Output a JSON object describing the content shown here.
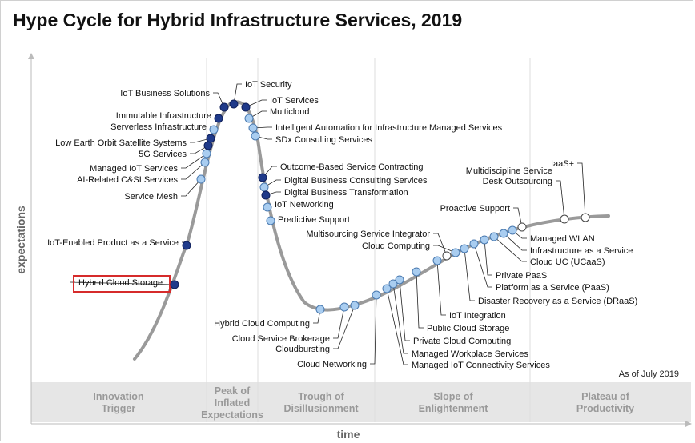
{
  "title": "Hype Cycle for Hybrid Infrastructure Services, 2019",
  "axes": {
    "y_label": "expectations",
    "x_label": "time"
  },
  "as_of": "As of July 2019",
  "phases": [
    {
      "lines": [
        "Innovation",
        "Trigger"
      ]
    },
    {
      "lines": [
        "Peak of",
        "Inflated",
        "Expectations"
      ]
    },
    {
      "lines": [
        "Trough of",
        "Disillusionment"
      ]
    },
    {
      "lines": [
        "Slope of",
        "Enlightenment"
      ]
    },
    {
      "lines": [
        "Plateau of",
        "Productivity"
      ]
    }
  ],
  "colors": {
    "dark_marker": "#1f3a8a",
    "light_marker": "#a9cdf0",
    "white_marker": "#ffffff",
    "curve": "#9a9a9a",
    "highlight_box": "#d62b2b",
    "phase_band": "#e6e6e6",
    "phase_text": "#999999"
  },
  "technologies": [
    {
      "name": "Hybrid Cloud Storage",
      "marker": "dark",
      "highlighted": true
    },
    {
      "name": "IoT-Enabled Product as a Service",
      "marker": "dark"
    },
    {
      "name": "Service Mesh",
      "marker": "light"
    },
    {
      "name": "AI-Related C&SI Services",
      "marker": "light"
    },
    {
      "name": "Managed IoT Services",
      "marker": "light"
    },
    {
      "name": "5G Services",
      "marker": "dark"
    },
    {
      "name": "Low Earth Orbit Satellite Systems",
      "marker": "dark"
    },
    {
      "name": "Serverless Infrastructure",
      "marker": "light"
    },
    {
      "name": "Immutable Infrastructure",
      "marker": "dark"
    },
    {
      "name": "IoT Business Solutions",
      "marker": "dark"
    },
    {
      "name": "IoT Security",
      "marker": "dark"
    },
    {
      "name": "IoT Services",
      "marker": "dark"
    },
    {
      "name": "Multicloud",
      "marker": "light"
    },
    {
      "name": "Intelligent Automation for Infrastructure Managed Services",
      "marker": "light"
    },
    {
      "name": "SDx Consulting Services",
      "marker": "light"
    },
    {
      "name": "Outcome-Based Service Contracting",
      "marker": "dark"
    },
    {
      "name": "Digital Business Consulting Services",
      "marker": "light"
    },
    {
      "name": "Digital Business Transformation",
      "marker": "dark"
    },
    {
      "name": "IoT Networking",
      "marker": "light"
    },
    {
      "name": "Predictive Support",
      "marker": "light"
    },
    {
      "name": "Hybrid Cloud Computing",
      "marker": "light"
    },
    {
      "name": "Cloud Service Brokerage",
      "marker": "light"
    },
    {
      "name": "Cloudbursting",
      "marker": "light"
    },
    {
      "name": "Cloud Networking",
      "marker": "light"
    },
    {
      "name": "Managed IoT Connectivity Services",
      "marker": "light"
    },
    {
      "name": "Managed Workplace Services",
      "marker": "light"
    },
    {
      "name": "Private Cloud Computing",
      "marker": "light"
    },
    {
      "name": "Public Cloud Storage",
      "marker": "light"
    },
    {
      "name": "IoT Integration",
      "marker": "light"
    },
    {
      "name": "Multisourcing Service Integrator",
      "marker": "white"
    },
    {
      "name": "Cloud Computing",
      "marker": "light"
    },
    {
      "name": "Disaster Recovery as a Service (DRaaS)",
      "marker": "light"
    },
    {
      "name": "Platform as a Service (PaaS)",
      "marker": "light"
    },
    {
      "name": "Private PaaS",
      "marker": "light"
    },
    {
      "name": "Cloud UC (UCaaS)",
      "marker": "light"
    },
    {
      "name": "Infrastructure as a Service",
      "marker": "light"
    },
    {
      "name": "Managed WLAN",
      "marker": "light"
    },
    {
      "name": "Proactive Support",
      "marker": "white"
    },
    {
      "name": "Multidiscipline Service Desk Outsourcing",
      "marker": "white",
      "display_lines": [
        "Multidiscipline Service",
        "Desk Outsourcing"
      ]
    },
    {
      "name": "IaaS+",
      "marker": "white"
    }
  ]
}
